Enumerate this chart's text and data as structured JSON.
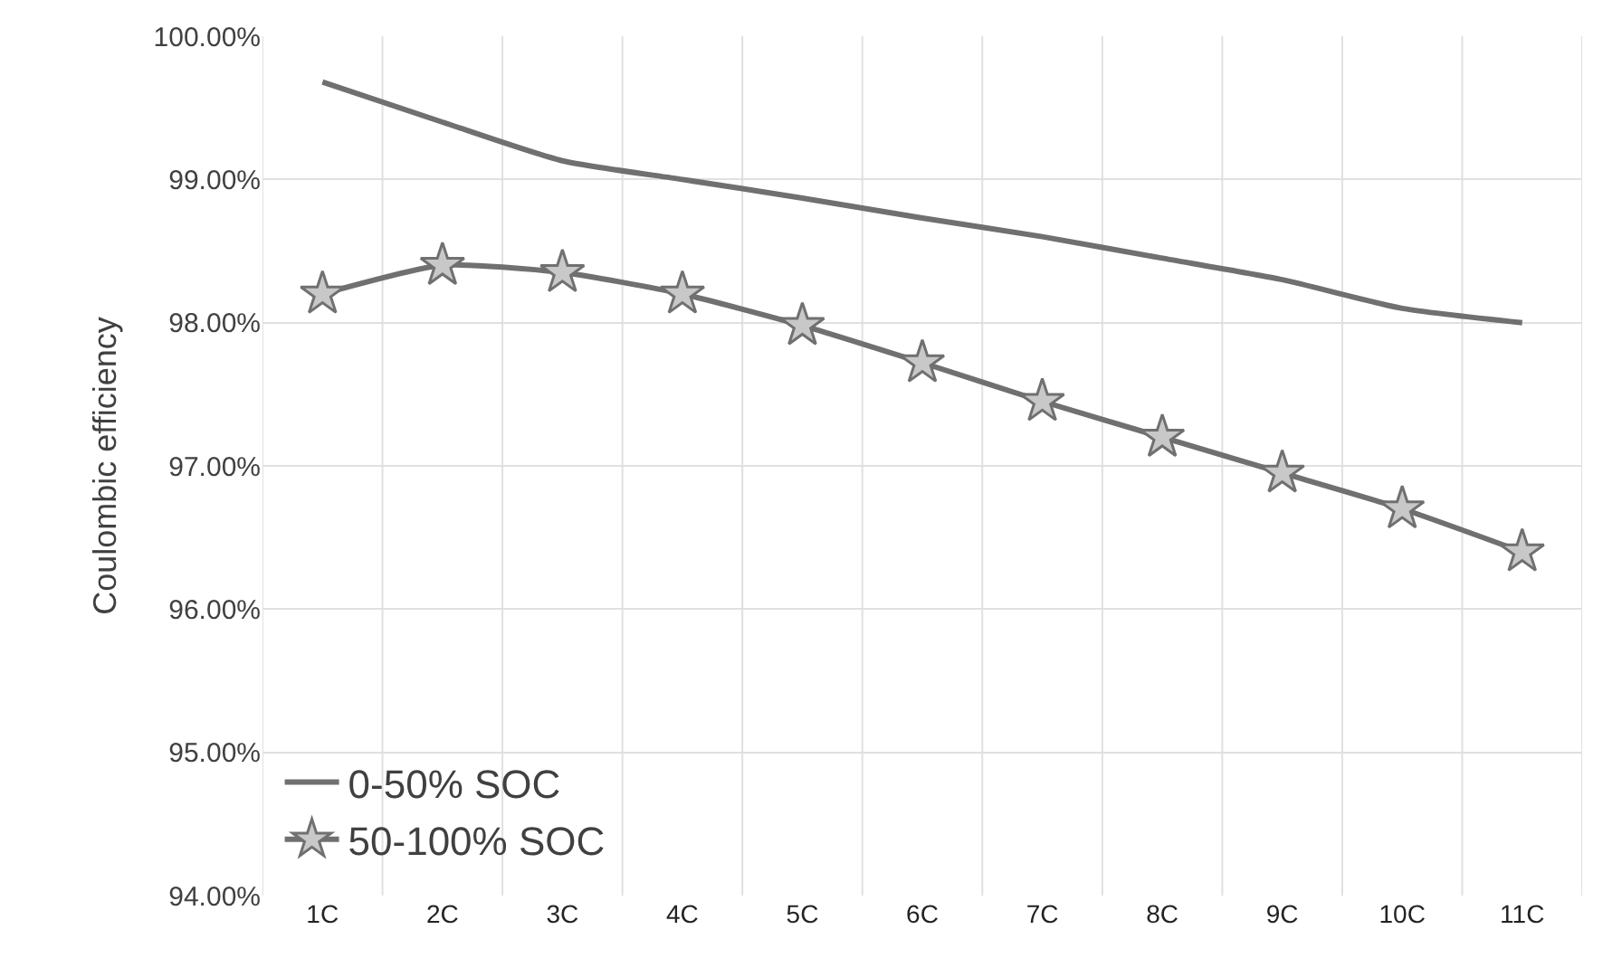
{
  "chart_data": {
    "type": "line",
    "ylabel": "Coulombic efficiency",
    "categories": [
      "1C",
      "2C",
      "3C",
      "4C",
      "5C",
      "6C",
      "7C",
      "8C",
      "9C",
      "10C",
      "11C"
    ],
    "series": [
      {
        "name": "0-50% SOC",
        "color": "#707070",
        "marker": "none",
        "values": [
          99.68,
          99.4,
          99.13,
          99.0,
          98.87,
          98.73,
          98.6,
          98.45,
          98.3,
          98.1,
          98.0
        ]
      },
      {
        "name": "50-100% SOC",
        "color": "#707070",
        "marker": "star",
        "values": [
          98.2,
          98.4,
          98.35,
          98.2,
          97.98,
          97.72,
          97.45,
          97.2,
          96.95,
          96.7,
          96.4
        ]
      }
    ],
    "ylim": [
      94,
      100
    ],
    "yticks": [
      {
        "value": 94,
        "label": "94.00%"
      },
      {
        "value": 95,
        "label": "95.00%"
      },
      {
        "value": 96,
        "label": "96.00%"
      },
      {
        "value": 97,
        "label": "97.00%"
      },
      {
        "value": 98,
        "label": "98.00%"
      },
      {
        "value": 99,
        "label": "99.00%"
      },
      {
        "value": 100,
        "label": "100.00%"
      }
    ],
    "grid": true,
    "legend": "bottom left",
    "line_style": "solid"
  }
}
